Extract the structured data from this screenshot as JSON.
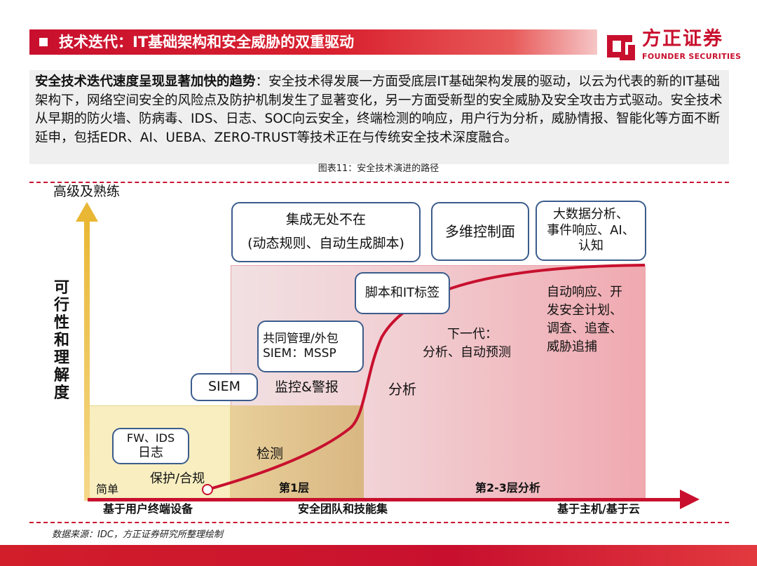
{
  "header": {
    "title": "技术迭代：IT基础架构和安全威胁的双重驱动",
    "logo_cn": "方正证券",
    "logo_en": "FOUNDER SECURITIES"
  },
  "intro": {
    "lead": "安全技术迭代速度呈现显著加快的趋势",
    "body": "：安全技术得发展一方面受底层IT基础架构发展的驱动，以云为代表的新的IT基础架构下，网络空间安全的风险点及防护机制发生了显著变化，另一方面受新型的安全威胁及安全攻击方式驱动。安全技术从早期的防火墙、防病毒、IDS、日志、SOC向云安全，终端检测的响应，用户行为分析，威胁情报、智能化等方面不断延申，包括EDR、AI、UEBA、ZERO-TRUST等技术正在与传统安全技术深度融合。"
  },
  "figure_caption": "图表11：安全技术演进的路径",
  "diagram": {
    "y_axis_top_label": "高级及熟练",
    "y_axis_title": [
      "可",
      "行",
      "性",
      "和",
      "理",
      "解",
      "度"
    ],
    "x_axis_labels": {
      "left": "基于用户终端设备",
      "middle": "安全团队和技能集",
      "right": "基于主机/基于云"
    },
    "region_labels": {
      "tier1": "第1层",
      "tier23": "第2-3层分析",
      "simple": "简单"
    },
    "curve_labels": {
      "protect": "保护/合规",
      "detect": "检测",
      "monitor": "监控&警报",
      "analyze": "分析",
      "next_gen_1": "下一代：",
      "next_gen_2": "分析、自动预测",
      "auto_1": "自动响应、开",
      "auto_2": "发安全计划、",
      "auto_3": "调查、追查、",
      "auto_4": "威胁追捕"
    },
    "boxes": {
      "fw_1": "FW、IDS",
      "fw_2": "日志",
      "siem": "SIEM",
      "mssp_1": "共同管理/外包",
      "mssp_2": "SIEM：MSSP",
      "script": "脚本和IT标签",
      "integrated_1": "集成无处不在",
      "integrated_2": "(动态规则、自动生成脚本)",
      "multi": "多维控制面",
      "bigdata_1": "大数据分析、",
      "bigdata_2": "事件响应、AI、",
      "bigdata_3": "认知"
    },
    "colors": {
      "curve": "#c8102e",
      "y_axis": "#f0c44a",
      "box_border": "#3b5c8c"
    }
  },
  "source": "数据来源：IDC，方正证券研究所整理绘制"
}
